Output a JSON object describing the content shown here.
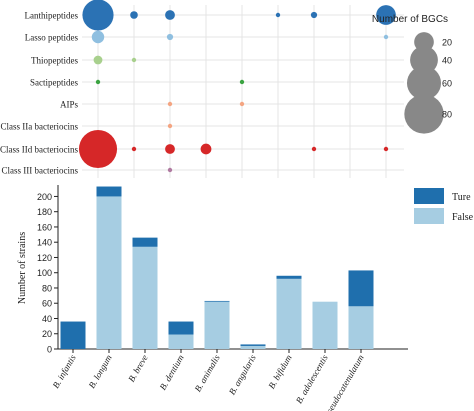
{
  "chart_data": [
    {
      "type": "scatter",
      "subtype": "bubble",
      "categories_x": [
        "B. infantis",
        "B. longum",
        "B. breve",
        "B. dentium",
        "B. animalis",
        "B. angularis",
        "B. bifidum",
        "B. adolescentis",
        "B. pseudocatenulatum"
      ],
      "categories_y": [
        "Lanthipeptides",
        "Lasso peptides",
        "Thiopeptides",
        "Sactipeptides",
        "AIPs",
        "Class IIa bacteriocins",
        "Class IId bacteriocins",
        "Class III bacteriocins"
      ],
      "legend_title": "Number of  BGCs",
      "legend_sizes": [
        20,
        40,
        60,
        80
      ],
      "legend_placement": "right",
      "grid": true,
      "colors": {
        "Lanthipeptides": "#2b72b4",
        "Lasso peptides": "#8fbfe0",
        "Thiopeptides": "#a8d08d",
        "Sactipeptides": "#3aa341",
        "AIPs": "#f4a582",
        "Class IIa bacteriocins": "#f4a582",
        "Class IId bacteriocins": "#d62728",
        "Class III bacteriocins": "#b07aa1"
      },
      "points": [
        {
          "x": "B. infantis",
          "y": "Lanthipeptides",
          "size": 50
        },
        {
          "x": "B. longum",
          "y": "Lanthipeptides",
          "size": 3
        },
        {
          "x": "B. breve",
          "y": "Lanthipeptides",
          "size": 5
        },
        {
          "x": "B. angularis",
          "y": "Lanthipeptides",
          "size": 1
        },
        {
          "x": "B. bifidum",
          "y": "Lanthipeptides",
          "size": 2
        },
        {
          "x": "B. pseudocatenulatum",
          "y": "Lanthipeptides",
          "size": 20
        },
        {
          "x": "B. infantis",
          "y": "Lasso peptides",
          "size": 8
        },
        {
          "x": "B. breve",
          "y": "Lasso peptides",
          "size": 2
        },
        {
          "x": "B. pseudocatenulatum",
          "y": "Lasso peptides",
          "size": 1
        },
        {
          "x": "B. infantis",
          "y": "Thiopeptides",
          "size": 4
        },
        {
          "x": "B. longum",
          "y": "Thiopeptides",
          "size": 1
        },
        {
          "x": "B. infantis",
          "y": "Sactipeptides",
          "size": 1
        },
        {
          "x": "B. animalis",
          "y": "Sactipeptides",
          "size": 1
        },
        {
          "x": "B. breve",
          "y": "AIPs",
          "size": 1
        },
        {
          "x": "B. animalis",
          "y": "AIPs",
          "size": 1
        },
        {
          "x": "B. breve",
          "y": "Class IIa bacteriocins",
          "size": 1
        },
        {
          "x": "B. infantis",
          "y": "Class IId bacteriocins",
          "size": 75
        },
        {
          "x": "B. longum",
          "y": "Class IId bacteriocins",
          "size": 1
        },
        {
          "x": "B. breve",
          "y": "Class IId bacteriocins",
          "size": 5
        },
        {
          "x": "B. dentium",
          "y": "Class IId bacteriocins",
          "size": 6
        },
        {
          "x": "B. bifidum",
          "y": "Class IId bacteriocins",
          "size": 1
        },
        {
          "x": "B. pseudocatenulatum",
          "y": "Class IId bacteriocins",
          "size": 1
        },
        {
          "x": "B. breve",
          "y": "Class III bacteriocins",
          "size": 1
        }
      ]
    },
    {
      "type": "bar",
      "stacked": true,
      "categories": [
        "B. infantis",
        "B. longum",
        "B. breve",
        "B. dentium",
        "B. animalis",
        "B. angularis",
        "B. bifidum",
        "B. adolescentis",
        "B. pseudocatenulatum"
      ],
      "series": [
        {
          "name": "False",
          "color": "#a6cde2",
          "values": [
            0,
            200,
            134,
            19,
            62,
            4,
            92,
            62,
            56
          ]
        },
        {
          "name": "Ture",
          "color": "#1f6fad",
          "values": [
            36,
            13,
            12,
            17,
            1,
            2,
            4,
            0,
            47
          ]
        }
      ],
      "ylabel": "Number of  strains",
      "xlabel": "",
      "ylim": [
        0,
        215
      ],
      "yticks": [
        0,
        20,
        40,
        60,
        80,
        100,
        120,
        140,
        160,
        180,
        200
      ],
      "legend_placement": "top-right"
    }
  ]
}
